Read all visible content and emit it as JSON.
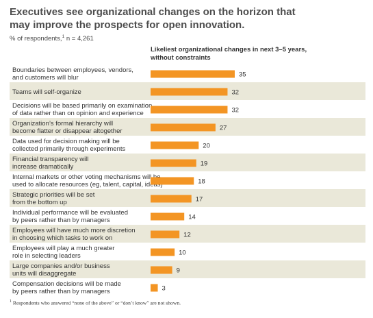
{
  "title_line1": "Executives see organizational changes on the horizon that",
  "title_line2": "may improve the prospects for open innovation.",
  "subtitle_main": "% of respondents,",
  "subtitle_sup": "1",
  "subtitle_n": " n = 4,261",
  "column_header_line1": "Likeliest organizational changes in next 3–5 years,",
  "column_header_line2": "without constraints",
  "footnote_sup": "1",
  "footnote_text": " Respondents who answered “none of the above” or “don’t know” are not shown.",
  "colors": {
    "bar": "#f39524",
    "band": "#eae8d9",
    "text": "#333333"
  },
  "chart_data": {
    "type": "bar",
    "orientation": "horizontal",
    "xlim": [
      0,
      35
    ],
    "categories": [
      [
        "Boundaries between employees, vendors,",
        "and customers will blur"
      ],
      [
        "Teams will self-organize"
      ],
      [
        "Decisions will be based primarily on examination",
        "of data rather than on opinion and experience"
      ],
      [
        "Organization’s formal hierarchy will",
        "become flatter or disappear altogether"
      ],
      [
        "Data used for decision making will be",
        "collected primarily through experiments"
      ],
      [
        "Financial transparency will",
        "increase dramatically"
      ],
      [
        "Internal markets or other voting mechanisms will be",
        "used to allocate resources (eg, talent, capital, ideas)"
      ],
      [
        "Strategic priorities will be set",
        "from the bottom up"
      ],
      [
        "Individual performance will be evaluated",
        "by peers rather than by managers"
      ],
      [
        "Employees will have much more discretion",
        "in choosing which tasks to work on"
      ],
      [
        "Employees will play a much greater",
        "role in selecting leaders"
      ],
      [
        "Large companies and/or business",
        "units will disaggregate"
      ],
      [
        "Compensation decisions will be made",
        "by peers rather than by managers"
      ]
    ],
    "values": [
      35,
      32,
      32,
      27,
      20,
      19,
      18,
      17,
      14,
      12,
      10,
      9,
      3
    ]
  }
}
